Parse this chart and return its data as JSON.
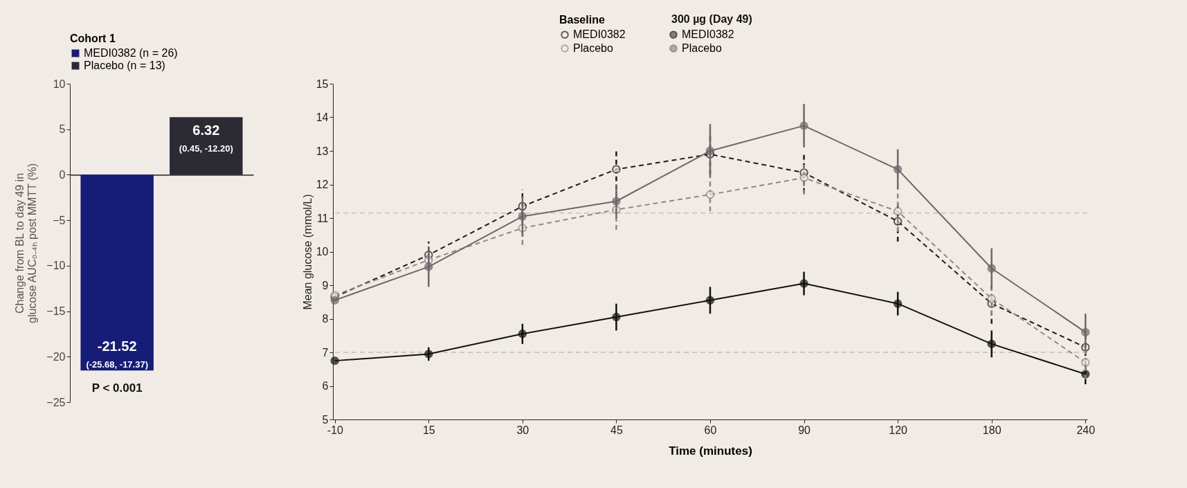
{
  "chart_data": [
    {
      "type": "bar",
      "categories": [
        null,
        null
      ],
      "ylabel": "Change from BL to day 49 in glucose AUC₀₋₄ₕ post MMTT (%)",
      "legend_title": "Cohort 1",
      "legend": "top",
      "series": [
        {
          "name": "MEDI0382 (n = 26)",
          "color": "#161d78",
          "values": [
            -21.52,
            null
          ]
        },
        {
          "name": "Placebo (n = 13)",
          "color": "#2c2b33",
          "values": [
            null,
            6.32
          ]
        }
      ],
      "ylim": [
        -25,
        10
      ],
      "yticks": [
        -25,
        -20,
        -15,
        -10,
        -5,
        0,
        5,
        10
      ],
      "data_labels": true,
      "annotations": [
        "(-25.68, -17.37)",
        "(0.45, -12.20)",
        "P < 0.001"
      ]
    },
    {
      "type": "line",
      "categories": [
        "-10",
        "15",
        "30",
        "45",
        "60",
        "90",
        "120",
        "180",
        "240"
      ],
      "xlabel": "Time (minutes)",
      "ylabel": "Mean glucose (mmol/L)",
      "legend_title": "Baseline",
      "legend": "top",
      "marker": "circle",
      "series": [
        {
          "name": "MEDI0382",
          "color": "#1b1b1b",
          "line_style": "dashed",
          "values": [
            8.65,
            9.9,
            11.35,
            12.45,
            12.9,
            12.35,
            10.9,
            8.45,
            7.15
          ],
          "errors": [
            null,
            0.4,
            0.5,
            0.6,
            0.6,
            0.6,
            0.6,
            0.6,
            0.5
          ]
        },
        {
          "name": "MEDI0382",
          "color": "#111111",
          "line_style": "solid",
          "values": [
            6.75,
            6.95,
            7.55,
            8.05,
            8.55,
            9.05,
            8.45,
            7.25,
            6.35
          ],
          "errors": [
            null,
            0.2,
            0.3,
            0.4,
            0.4,
            0.35,
            0.35,
            0.4,
            0.3
          ]
        },
        {
          "name": "Placebo",
          "color": "#8c8888",
          "line_style": "dashed",
          "values": [
            8.7,
            9.75,
            10.7,
            11.25,
            11.7,
            12.2,
            11.2,
            8.6,
            6.7
          ],
          "errors": [
            null,
            0.4,
            0.5,
            0.6,
            0.5,
            0.5,
            0.6,
            0.5,
            0.5
          ]
        },
        {
          "name": "Placebo",
          "color": "#6e6569",
          "line_style": "solid",
          "values": [
            8.55,
            9.55,
            11.05,
            11.5,
            13.0,
            13.75,
            12.45,
            9.5,
            7.6
          ],
          "errors": [
            null,
            0.6,
            0.6,
            0.5,
            0.8,
            0.65,
            0.6,
            0.6,
            0.55
          ]
        }
      ],
      "ylim": [
        5,
        15
      ],
      "yticks": [
        5,
        6,
        7,
        8,
        9,
        10,
        11,
        12,
        13,
        14,
        15
      ],
      "ref_lines": [
        {
          "axis": "y",
          "value": 11.15,
          "color": "#c4c0bc",
          "line_style": "dashed"
        },
        {
          "axis": "y",
          "value": 7.0,
          "color": "#c4c0bc",
          "line_style": "dashed"
        }
      ],
      "annotations": [
        "300 µg (Day 49)"
      ]
    }
  ]
}
